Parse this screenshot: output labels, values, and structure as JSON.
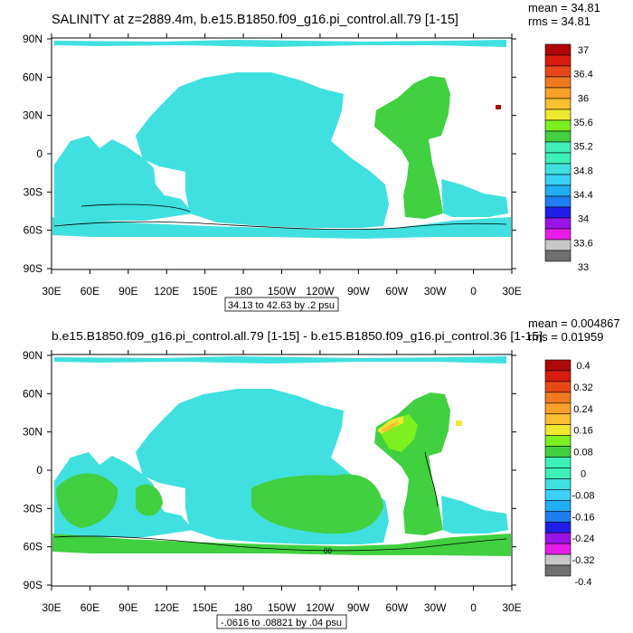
{
  "palette": [
    "#707070",
    "#c8c8c8",
    "#e81ce8",
    "#9b12e8",
    "#1e1ee8",
    "#1e7ef0",
    "#20aef5",
    "#3ad0f8",
    "#40e0e0",
    "#3ef0b8",
    "#40d040",
    "#7cf020",
    "#f0e830",
    "#f8c030",
    "#f8a028",
    "#f07a20",
    "#e84818",
    "#d81c10",
    "#b00808"
  ],
  "land_color": "#ffffff",
  "panels": [
    {
      "title": "SALINITY at z=2889.4m, b.e15.B1850.f09_g16.pi_control.all.79 [1-15]",
      "stats": {
        "mean": "mean = 34.81",
        "rms": "rms = 34.81"
      },
      "contour_info": "34.13 to 42.63 by .2 psu",
      "contour_label": "",
      "colorbar_labels": [
        "37",
        "36.4",
        "36",
        "35.6",
        "35.2",
        "34.8",
        "34.4",
        "34",
        "33.6",
        "33"
      ]
    },
    {
      "title": "b.e15.B1850.f09_g16.pi_control.all.79 [1-15] - b.e15.B1850.f09_g16.pi_control.36 [1-15]",
      "stats": {
        "mean": "mean = 0.004867",
        "rms": "rms = 0.01959"
      },
      "contour_info": "-.0616 to .08821 by .04 psu",
      "contour_label": "00",
      "colorbar_labels": [
        "0.4",
        "0.32",
        "0.24",
        "0.16",
        "0.08",
        "0",
        "-0.08",
        "-0.16",
        "-0.24",
        "-0.32",
        "-0.4"
      ]
    }
  ],
  "chart_data": [
    {
      "type": "heatmap",
      "title": "SALINITY at z=2889.4m, b.e15.B1850.f09_g16.pi_control.all.79 [1-15]",
      "variable": "SALINITY",
      "depth": "z=2889.4m",
      "units": "psu",
      "mean": 34.81,
      "rms": 34.81,
      "contour_range": [
        34.13,
        42.63
      ],
      "contour_interval": 0.2,
      "x_ticks": [
        "30E",
        "60E",
        "90E",
        "120E",
        "150E",
        "180",
        "150W",
        "120W",
        "90W",
        "60W",
        "30W",
        "0",
        "30E"
      ],
      "y_ticks": [
        "90N",
        "60N",
        "30N",
        "0",
        "30S",
        "60S",
        "90S"
      ],
      "colorbar_levels": [
        33,
        33.2,
        33.4,
        33.6,
        33.8,
        34,
        34.2,
        34.4,
        34.6,
        34.8,
        35,
        35.2,
        35.4,
        35.6,
        35.8,
        36,
        36.2,
        36.4,
        36.6,
        36.8,
        37
      ],
      "dominant_values": {
        "Pacific": 34.7,
        "Indian": 34.75,
        "Southern Ocean": 34.7,
        "Atlantic": 34.95
      }
    },
    {
      "type": "heatmap",
      "title": "b.e15.B1850.f09_g16.pi_control.all.79 [1-15] - b.e15.B1850.f09_g16.pi_control.36 [1-15]",
      "units": "psu",
      "mean": 0.004867,
      "rms": 0.01959,
      "contour_range": [
        -0.0616,
        0.08821
      ],
      "contour_interval": 0.04,
      "x_ticks": [
        "30E",
        "60E",
        "90E",
        "120E",
        "150E",
        "180",
        "150W",
        "120W",
        "90W",
        "60W",
        "30W",
        "0",
        "30E"
      ],
      "y_ticks": [
        "90N",
        "60N",
        "30N",
        "0",
        "30S",
        "60S",
        "90S"
      ],
      "colorbar_levels": [
        -0.4,
        -0.36,
        -0.32,
        -0.28,
        -0.24,
        -0.2,
        -0.16,
        -0.12,
        -0.08,
        -0.04,
        0,
        0.04,
        0.08,
        0.12,
        0.16,
        0.2,
        0.24,
        0.28,
        0.32,
        0.36,
        0.4
      ],
      "dominant_values": {
        "Pacific": 0.02,
        "Indian": 0.02,
        "Southern Ocean": 0.03,
        "Atlantic": 0.05,
        "North Atlantic max": 0.12
      }
    }
  ]
}
